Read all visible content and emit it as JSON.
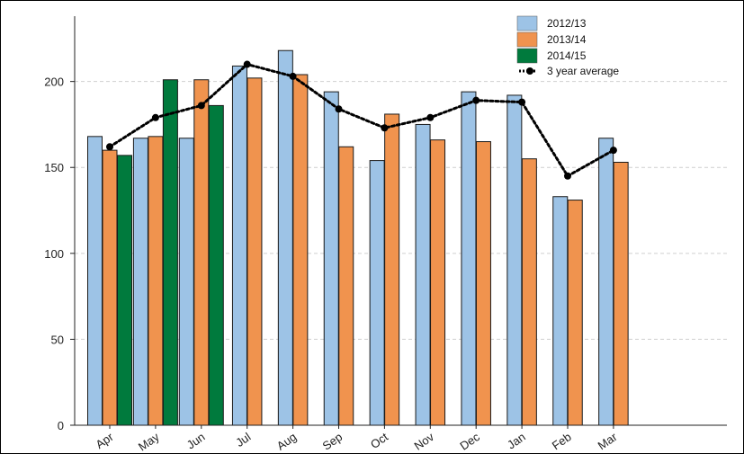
{
  "chart_data": {
    "type": "bar",
    "title": "",
    "xlabel": "",
    "ylabel": "",
    "ylim": [
      0,
      238
    ],
    "yticks": [
      0,
      50,
      100,
      150,
      200
    ],
    "categories": [
      "Apr",
      "May",
      "Jun",
      "Jul",
      "Aug",
      "Sep",
      "Oct",
      "Nov",
      "Dec",
      "Jan",
      "Feb",
      "Mar"
    ],
    "series": [
      {
        "name": "2012/13",
        "type": "bar",
        "color": "#9dc3e6",
        "values": [
          168,
          167,
          167,
          209,
          218,
          194,
          154,
          175,
          194,
          192,
          133,
          167
        ]
      },
      {
        "name": "2013/14",
        "type": "bar",
        "color": "#f0934e",
        "values": [
          160,
          168,
          201,
          202,
          204,
          162,
          181,
          166,
          165,
          155,
          131,
          153
        ]
      },
      {
        "name": "2014/15",
        "type": "bar",
        "color": "#007a3d",
        "values": [
          157,
          201,
          186,
          null,
          null,
          null,
          null,
          null,
          null,
          null,
          null,
          null
        ]
      },
      {
        "name": "3 year average",
        "type": "line",
        "color": "#000000",
        "style": "dotted",
        "values": [
          162,
          179,
          186,
          210,
          203,
          184,
          173,
          179,
          189,
          188,
          145,
          160
        ]
      }
    ],
    "grid": {
      "y": true,
      "x": false
    },
    "legend": {
      "position": "top-right"
    }
  }
}
